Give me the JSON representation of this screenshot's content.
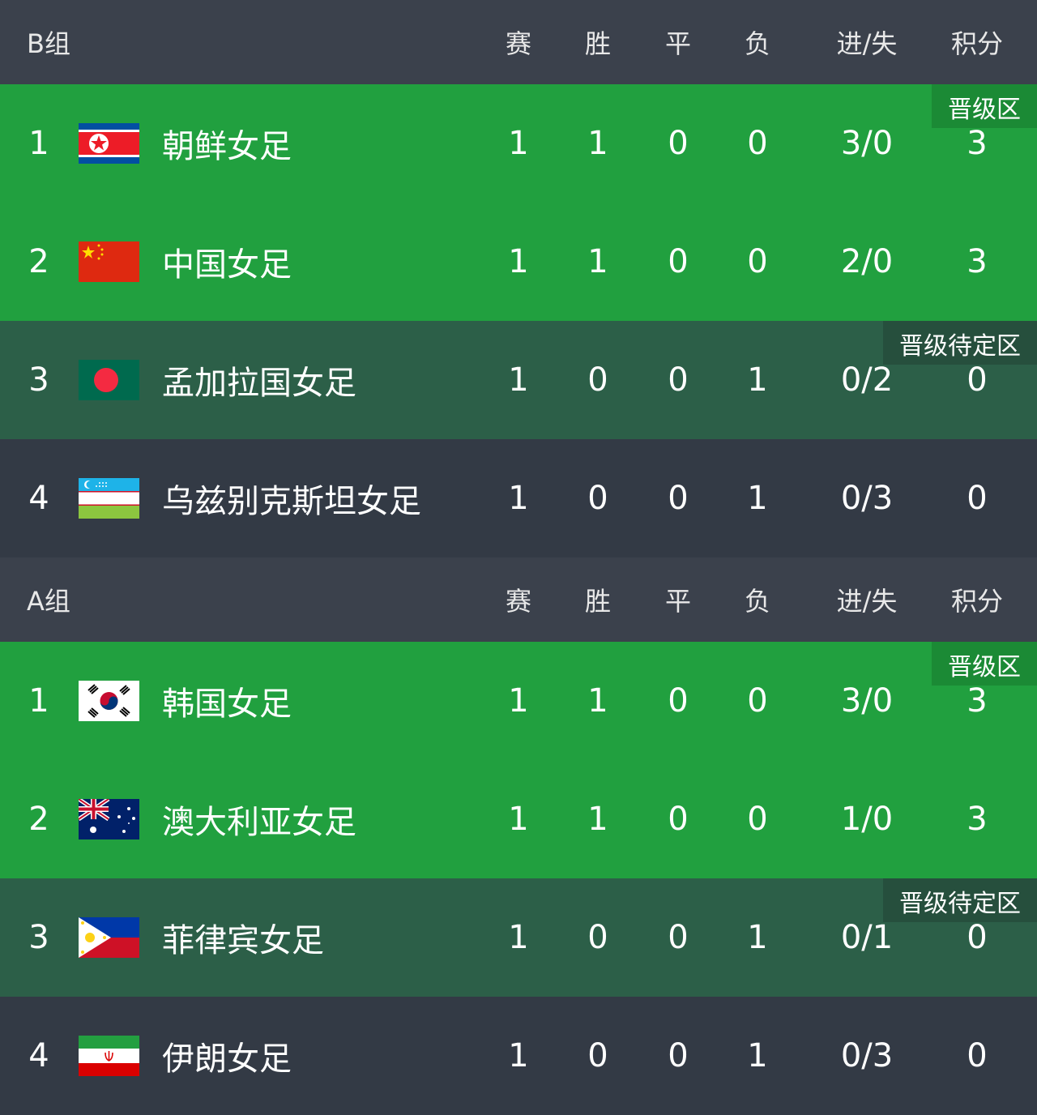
{
  "columns": [
    "赛",
    "胜",
    "平",
    "负",
    "进/失",
    "积分"
  ],
  "colors": {
    "qualified": "#21a03f",
    "pending": "#2c5f48",
    "normal": "#333a45",
    "header": "#3b414c"
  },
  "groups": [
    {
      "name": "B组",
      "rows": [
        {
          "rank": "1",
          "flag": "north-korea-flag",
          "team": "朝鲜女足",
          "p": "1",
          "w": "1",
          "d": "0",
          "l": "0",
          "gf_ga": "3/0",
          "pts": "3",
          "zone": "qualified",
          "badge": "晋级区"
        },
        {
          "rank": "2",
          "flag": "china-flag",
          "team": "中国女足",
          "p": "1",
          "w": "1",
          "d": "0",
          "l": "0",
          "gf_ga": "2/0",
          "pts": "3",
          "zone": "qualified",
          "badge": ""
        },
        {
          "rank": "3",
          "flag": "bangladesh-flag",
          "team": "孟加拉国女足",
          "p": "1",
          "w": "0",
          "d": "0",
          "l": "1",
          "gf_ga": "0/2",
          "pts": "0",
          "zone": "pending",
          "badge": "晋级待定区"
        },
        {
          "rank": "4",
          "flag": "uzbekistan-flag",
          "team": "乌兹别克斯坦女足",
          "p": "1",
          "w": "0",
          "d": "0",
          "l": "1",
          "gf_ga": "0/3",
          "pts": "0",
          "zone": "normal",
          "badge": ""
        }
      ]
    },
    {
      "name": "A组",
      "rows": [
        {
          "rank": "1",
          "flag": "south-korea-flag",
          "team": "韩国女足",
          "p": "1",
          "w": "1",
          "d": "0",
          "l": "0",
          "gf_ga": "3/0",
          "pts": "3",
          "zone": "qualified",
          "badge": "晋级区"
        },
        {
          "rank": "2",
          "flag": "australia-flag",
          "team": "澳大利亚女足",
          "p": "1",
          "w": "1",
          "d": "0",
          "l": "0",
          "gf_ga": "1/0",
          "pts": "3",
          "zone": "qualified",
          "badge": ""
        },
        {
          "rank": "3",
          "flag": "philippines-flag",
          "team": "菲律宾女足",
          "p": "1",
          "w": "0",
          "d": "0",
          "l": "1",
          "gf_ga": "0/1",
          "pts": "0",
          "zone": "pending",
          "badge": "晋级待定区"
        },
        {
          "rank": "4",
          "flag": "iran-flag",
          "team": "伊朗女足",
          "p": "1",
          "w": "0",
          "d": "0",
          "l": "1",
          "gf_ga": "0/3",
          "pts": "0",
          "zone": "normal",
          "badge": ""
        }
      ]
    }
  ]
}
